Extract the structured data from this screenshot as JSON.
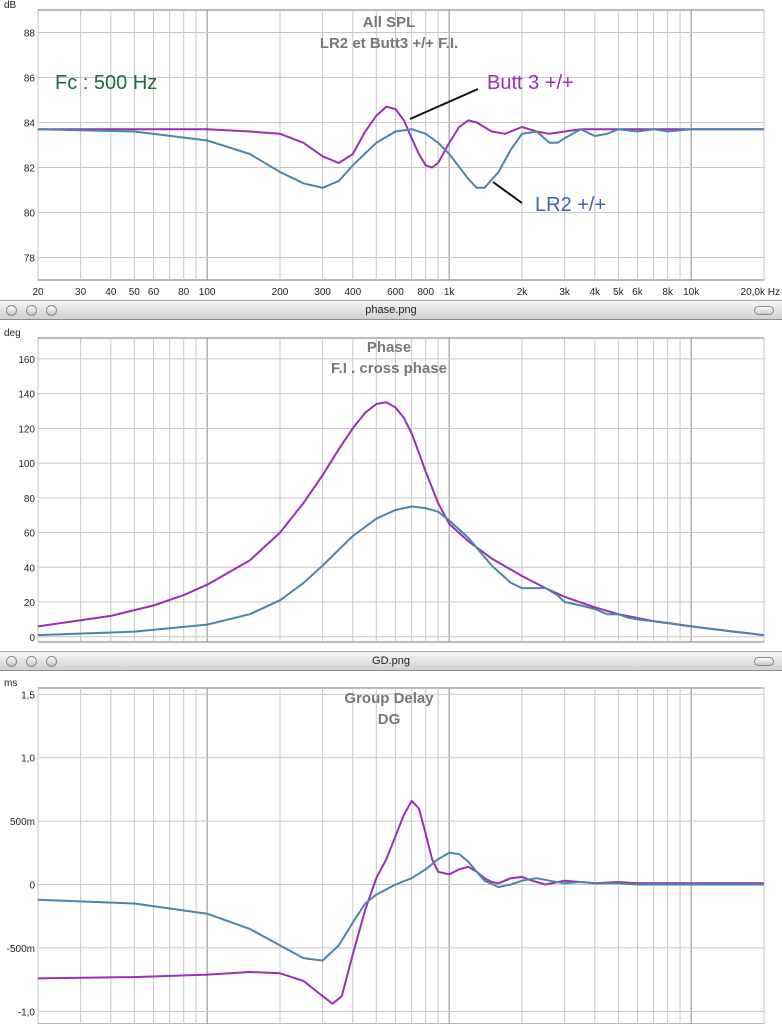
{
  "windows": [
    {
      "title": "phase.png"
    },
    {
      "title": "GD.png"
    }
  ],
  "colors": {
    "butt3": "#9b2fb5",
    "lr2": "#4a86a8",
    "fc_text": "#1f6b3f",
    "lr2_text": "#3d63b0"
  },
  "chart_data": [
    {
      "type": "line",
      "title": "All SPL",
      "subtitle": "LR2 et Butt3 +/+ F.I.",
      "unit": "dB",
      "xscale": "log",
      "xlim": [
        20,
        20000
      ],
      "ylim": [
        77,
        89
      ],
      "x_ticks": [
        {
          "v": 20,
          "label": "20"
        },
        {
          "v": 30,
          "label": "30"
        },
        {
          "v": 40,
          "label": "40"
        },
        {
          "v": 50,
          "label": "50"
        },
        {
          "v": 60,
          "label": "60"
        },
        {
          "v": 80,
          "label": "80"
        },
        {
          "v": 100,
          "label": "100"
        },
        {
          "v": 200,
          "label": "200"
        },
        {
          "v": 300,
          "label": "300"
        },
        {
          "v": 400,
          "label": "400"
        },
        {
          "v": 600,
          "label": "600"
        },
        {
          "v": 800,
          "label": "800"
        },
        {
          "v": 1000,
          "label": "1k"
        },
        {
          "v": 2000,
          "label": "2k"
        },
        {
          "v": 3000,
          "label": "3k"
        },
        {
          "v": 4000,
          "label": "4k"
        },
        {
          "v": 5000,
          "label": "5k"
        },
        {
          "v": 6000,
          "label": "6k"
        },
        {
          "v": 8000,
          "label": "8k"
        },
        {
          "v": 10000,
          "label": "10k"
        },
        {
          "v": 20000,
          "label": "20,0k Hz"
        }
      ],
      "y_ticks": [
        {
          "v": 78,
          "label": "78"
        },
        {
          "v": 80,
          "label": "80"
        },
        {
          "v": 82,
          "label": "82"
        },
        {
          "v": 84,
          "label": "84"
        },
        {
          "v": 86,
          "label": "86"
        },
        {
          "v": 88,
          "label": "88"
        }
      ],
      "annotations": [
        {
          "text": "Fc : 500 Hz"
        },
        {
          "text": "Butt 3 +/+"
        },
        {
          "text": "LR2 +/+"
        }
      ],
      "series": [
        {
          "name": "Butt 3 +/+",
          "color": "#9b2fb5",
          "x": [
            20,
            100,
            150,
            200,
            250,
            300,
            350,
            400,
            450,
            500,
            550,
            600,
            650,
            700,
            750,
            800,
            850,
            900,
            1000,
            1100,
            1200,
            1300,
            1500,
            1700,
            2000,
            2300,
            2600,
            3000,
            3500,
            4000,
            5000,
            6000,
            8000,
            10000,
            20000
          ],
          "y": [
            83.7,
            83.7,
            83.6,
            83.5,
            83.1,
            82.5,
            82.2,
            82.6,
            83.6,
            84.3,
            84.7,
            84.6,
            84.1,
            83.3,
            82.6,
            82.1,
            82.0,
            82.2,
            83.1,
            83.8,
            84.1,
            84.0,
            83.6,
            83.5,
            83.8,
            83.6,
            83.5,
            83.6,
            83.7,
            83.7,
            83.7,
            83.7,
            83.7,
            83.7,
            83.7
          ]
        },
        {
          "name": "LR2 +/+",
          "color": "#4a86a8",
          "x": [
            20,
            50,
            100,
            150,
            200,
            250,
            300,
            350,
            400,
            500,
            600,
            700,
            800,
            900,
            1000,
            1200,
            1300,
            1400,
            1600,
            1800,
            2000,
            2300,
            2600,
            2800,
            3000,
            3500,
            4000,
            4500,
            5000,
            6000,
            7000,
            8000,
            10000,
            20000
          ],
          "y": [
            83.7,
            83.6,
            83.2,
            82.6,
            81.8,
            81.3,
            81.1,
            81.4,
            82.1,
            83.1,
            83.6,
            83.7,
            83.5,
            83.1,
            82.6,
            81.5,
            81.1,
            81.1,
            81.8,
            82.8,
            83.5,
            83.6,
            83.1,
            83.1,
            83.3,
            83.7,
            83.4,
            83.5,
            83.7,
            83.6,
            83.7,
            83.6,
            83.7,
            83.7
          ]
        }
      ]
    },
    {
      "type": "line",
      "title": "Phase",
      "subtitle": "F.I .  cross phase",
      "unit": "deg",
      "xscale": "log",
      "xlim": [
        20,
        20000
      ],
      "ylim": [
        -3,
        172
      ],
      "y_ticks": [
        {
          "v": 0,
          "label": "0"
        },
        {
          "v": 20,
          "label": "20"
        },
        {
          "v": 40,
          "label": "40"
        },
        {
          "v": 60,
          "label": "60"
        },
        {
          "v": 80,
          "label": "80"
        },
        {
          "v": 100,
          "label": "100"
        },
        {
          "v": 120,
          "label": "120"
        },
        {
          "v": 140,
          "label": "140"
        },
        {
          "v": 160,
          "label": "160"
        }
      ],
      "series": [
        {
          "name": "Butt 3 +/+",
          "color": "#9b2fb5",
          "x": [
            20,
            40,
            60,
            80,
            100,
            150,
            200,
            250,
            300,
            350,
            400,
            450,
            500,
            550,
            600,
            650,
            700,
            750,
            800,
            900,
            1000,
            1200,
            1500,
            2000,
            2500,
            3000,
            4000,
            5000,
            7000,
            10000,
            15000,
            20000
          ],
          "y": [
            6,
            12,
            18,
            24,
            30,
            44,
            60,
            77,
            93,
            108,
            120,
            129,
            134,
            135,
            132,
            126,
            117,
            106,
            95,
            77,
            65,
            55,
            45,
            35,
            28,
            23,
            17,
            13,
            9,
            6,
            3,
            1
          ]
        },
        {
          "name": "LR2 +/+",
          "color": "#4a86a8",
          "x": [
            20,
            50,
            100,
            150,
            200,
            250,
            300,
            400,
            500,
            600,
            700,
            800,
            900,
            1000,
            1200,
            1500,
            1800,
            2000,
            2500,
            2800,
            3000,
            3500,
            4000,
            4500,
            5000,
            5500,
            6000,
            7000,
            8000,
            10000,
            15000,
            20000
          ],
          "y": [
            1,
            3,
            7,
            13,
            21,
            31,
            41,
            58,
            68,
            73,
            75,
            74,
            72,
            67,
            57,
            41,
            31,
            28,
            28,
            24,
            20,
            18,
            16,
            13,
            13,
            11,
            10,
            9,
            8,
            6,
            3,
            1
          ]
        }
      ]
    },
    {
      "type": "line",
      "title": "Group Delay",
      "subtitle": "DG",
      "unit": "ms",
      "xscale": "log",
      "xlim": [
        20,
        20000
      ],
      "ylim": [
        -1.1,
        1.55
      ],
      "y_ticks": [
        {
          "v": -1.0,
          "label": "-1,0"
        },
        {
          "v": -0.5,
          "label": "-500m"
        },
        {
          "v": 0,
          "label": "0"
        },
        {
          "v": 0.5,
          "label": "500m"
        },
        {
          "v": 1.0,
          "label": "1,0"
        },
        {
          "v": 1.5,
          "label": "1,5"
        }
      ],
      "series": [
        {
          "name": "Butt 3 +/+",
          "color": "#9b2fb5",
          "x": [
            20,
            50,
            100,
            150,
            200,
            250,
            300,
            330,
            360,
            400,
            450,
            500,
            550,
            600,
            650,
            700,
            750,
            800,
            850,
            900,
            1000,
            1100,
            1200,
            1300,
            1400,
            1500,
            1600,
            1800,
            2000,
            2200,
            2500,
            3000,
            3500,
            4000,
            5000,
            6000,
            8000,
            10000,
            20000
          ],
          "y": [
            -0.74,
            -0.73,
            -0.71,
            -0.69,
            -0.7,
            -0.76,
            -0.88,
            -0.94,
            -0.88,
            -0.55,
            -0.2,
            0.05,
            0.2,
            0.38,
            0.55,
            0.66,
            0.6,
            0.4,
            0.2,
            0.1,
            0.08,
            0.12,
            0.14,
            0.1,
            0.05,
            0.02,
            0.01,
            0.05,
            0.06,
            0.03,
            0.0,
            0.03,
            0.02,
            0.01,
            0.02,
            0.01,
            0.01,
            0.01,
            0.01
          ]
        },
        {
          "name": "LR2 +/+",
          "color": "#4a86a8",
          "x": [
            20,
            50,
            100,
            150,
            200,
            250,
            300,
            350,
            400,
            450,
            500,
            600,
            700,
            800,
            900,
            1000,
            1100,
            1200,
            1300,
            1400,
            1600,
            1800,
            2000,
            2300,
            2600,
            3000,
            3500,
            4000,
            5000,
            6000,
            8000,
            10000,
            20000
          ],
          "y": [
            -0.12,
            -0.15,
            -0.23,
            -0.35,
            -0.48,
            -0.58,
            -0.6,
            -0.48,
            -0.3,
            -0.15,
            -0.08,
            0.0,
            0.05,
            0.12,
            0.2,
            0.25,
            0.24,
            0.18,
            0.1,
            0.03,
            -0.02,
            0.0,
            0.03,
            0.05,
            0.03,
            0.01,
            0.02,
            0.01,
            0.01,
            0.0,
            0.0,
            0.0,
            0.0
          ]
        }
      ]
    }
  ]
}
